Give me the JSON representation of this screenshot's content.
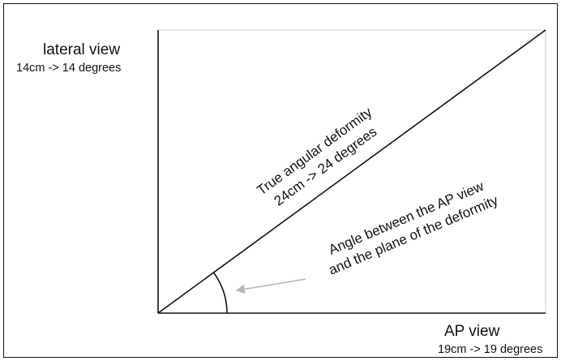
{
  "labels": {
    "lateral": {
      "title": "lateral view",
      "value": "14cm -> 14 degrees"
    },
    "ap": {
      "title": "AP view",
      "value": "19cm -> 19 degrees"
    },
    "true_deformity": {
      "title": "True angular deformity",
      "value": "24cm -> 24 degrees"
    },
    "angle": {
      "line1": "Angle between the AP view",
      "line2": "and the plane of the deformity"
    }
  },
  "colors": {
    "line": "#111111",
    "pointer": "#b5b5b5",
    "box": "#c8c8c8"
  }
}
